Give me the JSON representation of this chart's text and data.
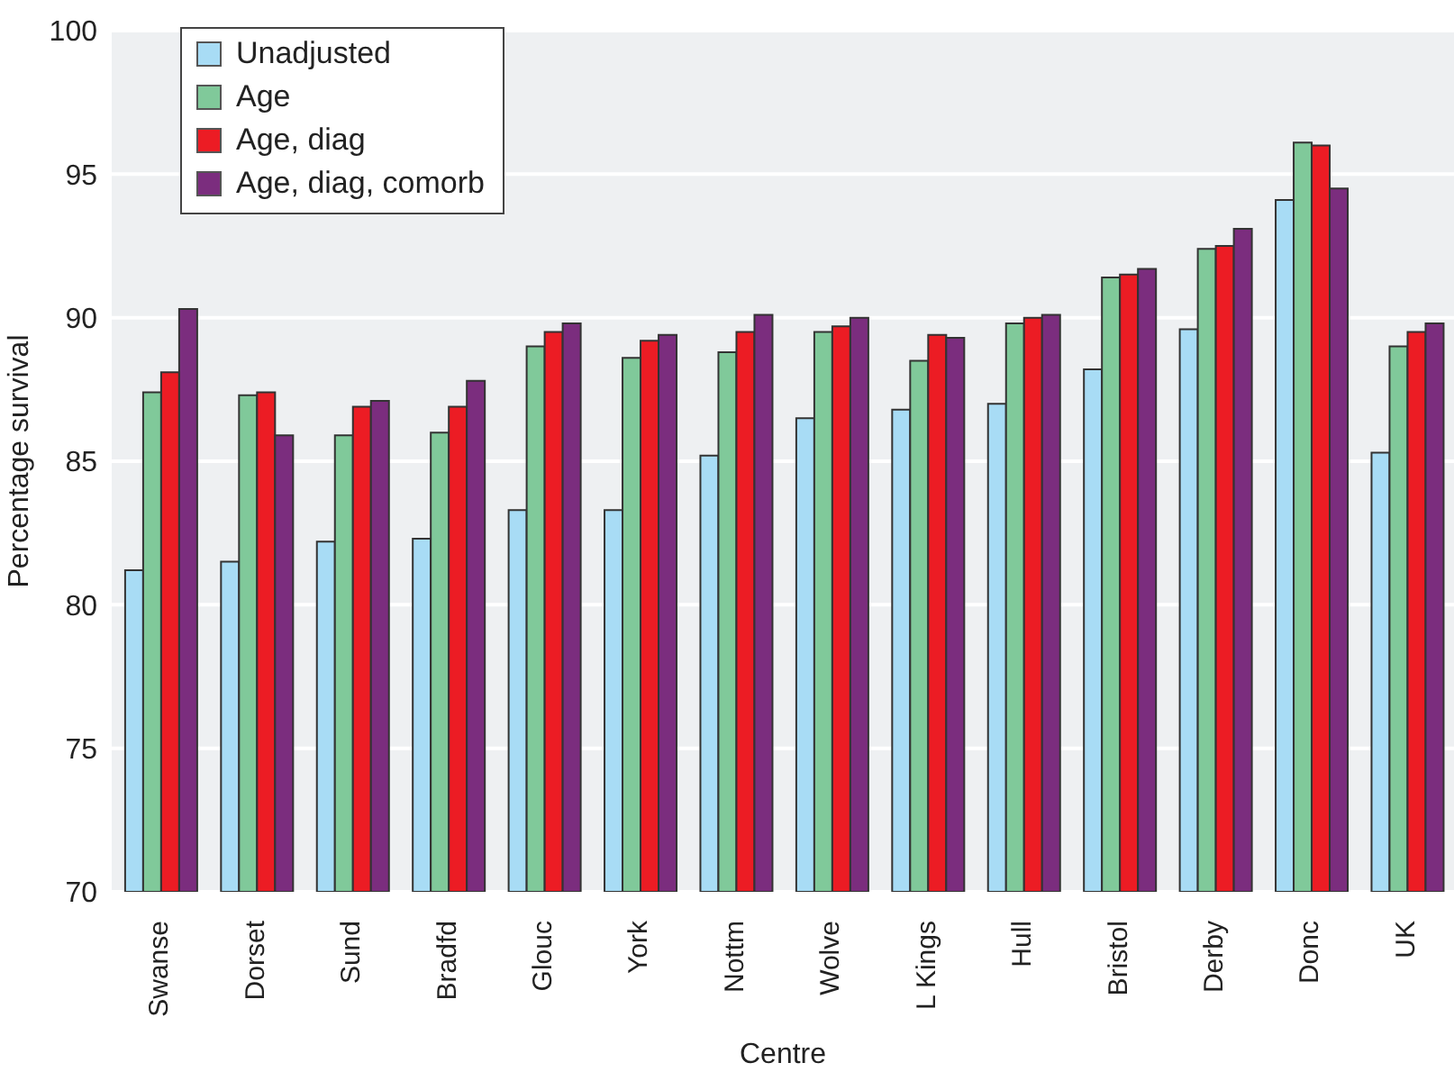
{
  "chart_data": {
    "type": "bar",
    "xlabel": "Centre",
    "ylabel": "Percentage survival",
    "categories": [
      "Swanse",
      "Dorset",
      "Sund",
      "Bradfd",
      "Glouc",
      "York",
      "Nottm",
      "Wolve",
      "L Kings",
      "Hull",
      "Bristol",
      "Derby",
      "Donc",
      "UK"
    ],
    "series": [
      {
        "name": "Unadjusted",
        "color": "#a8dcf5",
        "values": [
          81.2,
          81.5,
          82.2,
          82.3,
          83.3,
          83.3,
          85.2,
          86.5,
          86.8,
          87.0,
          88.2,
          89.6,
          94.1,
          85.3
        ]
      },
      {
        "name": "Age",
        "color": "#80c99a",
        "values": [
          87.4,
          87.3,
          85.9,
          86.0,
          89.0,
          88.6,
          88.8,
          89.5,
          88.5,
          89.8,
          91.4,
          92.4,
          96.1,
          89.0
        ]
      },
      {
        "name": "Age, diag",
        "color": "#ec1c24",
        "values": [
          88.1,
          87.4,
          86.9,
          86.9,
          89.5,
          89.2,
          89.5,
          89.7,
          89.4,
          90.0,
          91.5,
          92.5,
          96.0,
          89.5
        ]
      },
      {
        "name": "Age, diag, comorb",
        "color": "#7b2d7e",
        "values": [
          90.3,
          85.9,
          87.1,
          87.8,
          89.8,
          89.4,
          90.1,
          90.0,
          89.3,
          90.1,
          91.7,
          93.1,
          94.5,
          89.8
        ]
      }
    ],
    "ylim": [
      70,
      100
    ],
    "yticks": [
      70,
      75,
      80,
      85,
      90,
      95,
      100
    ],
    "grid": "y",
    "legend": "top left"
  }
}
